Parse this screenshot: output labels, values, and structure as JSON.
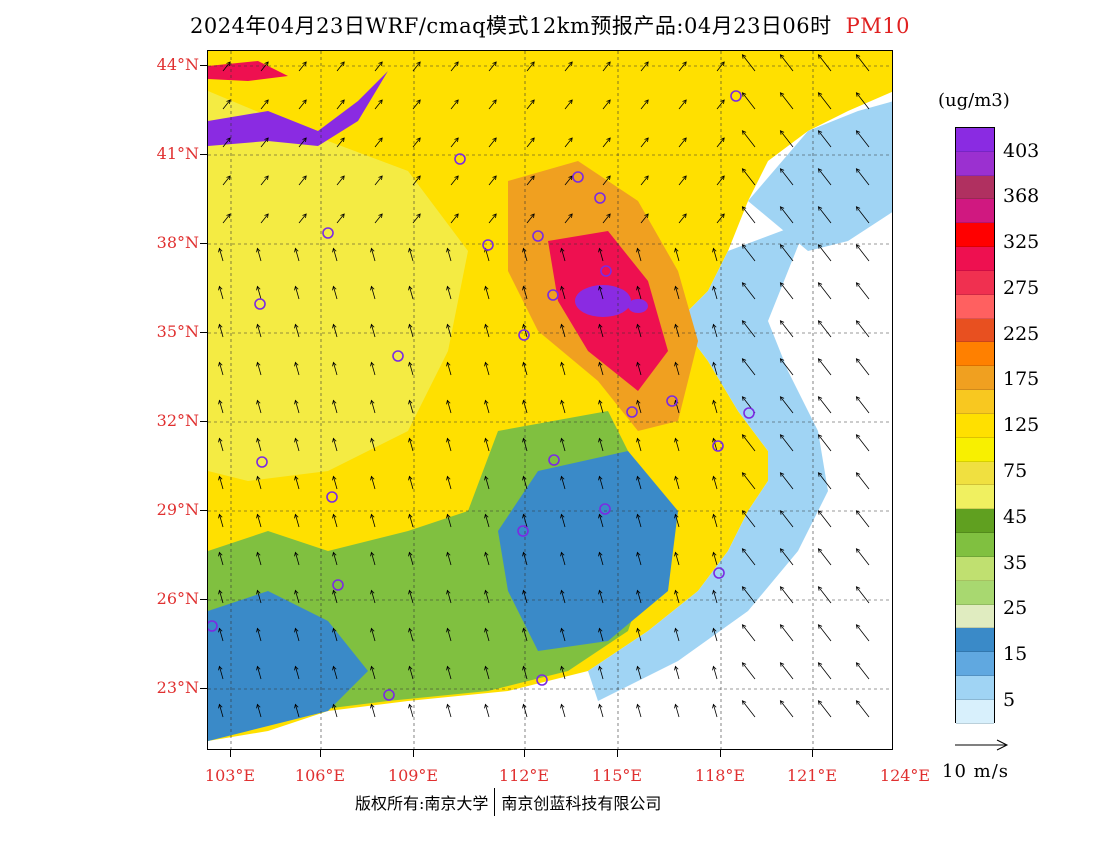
{
  "title": {
    "text": "2024年04月23日WRF/cmaq模式12km预报产品:04月23日06时",
    "variable": "PM10"
  },
  "lat_labels": [
    "44°N",
    "41°N",
    "38°N",
    "35°N",
    "32°N",
    "29°N",
    "26°N",
    "23°N"
  ],
  "lon_labels": [
    "103°E",
    "106°E",
    "109°E",
    "112°E",
    "115°E",
    "118°E",
    "121°E",
    "124°E"
  ],
  "colorbar": {
    "unit": "(ug/m3)",
    "colors": [
      "#8a2be2",
      "#9b30d0",
      "#b03060",
      "#d01880",
      "#ff0000",
      "#ee1050",
      "#f03050",
      "#ff6060",
      "#e85020",
      "#ff8000",
      "#f0a020",
      "#f8c820",
      "#ffe000",
      "#f8f000",
      "#f0e040",
      "#f0f060",
      "#60a020",
      "#80c040",
      "#c0e070",
      "#a8d870",
      "#e0ecc0",
      "#3a8ac8",
      "#60a8e0",
      "#a0d4f4",
      "#d8f0fc"
    ],
    "labels": [
      "403",
      "368",
      "325",
      "275",
      "225",
      "175",
      "125",
      "75",
      "45",
      "35",
      "25",
      "15",
      "5"
    ]
  },
  "vector_key": {
    "label": "10 m/s"
  },
  "footer": {
    "copyright": "版权所有:南京大学",
    "company": "南京创蓝科技有限公司"
  },
  "map_colors": {
    "ocean": "#ffffff",
    "clean_coast": "#a0d4f4",
    "low": "#3a8ac8",
    "moderate": "#80c040",
    "yellow": "#ffe000",
    "light_yellow": "#f0f060",
    "orange": "#f0a020",
    "red": "#ee1050",
    "purple": "#8a2be2"
  }
}
